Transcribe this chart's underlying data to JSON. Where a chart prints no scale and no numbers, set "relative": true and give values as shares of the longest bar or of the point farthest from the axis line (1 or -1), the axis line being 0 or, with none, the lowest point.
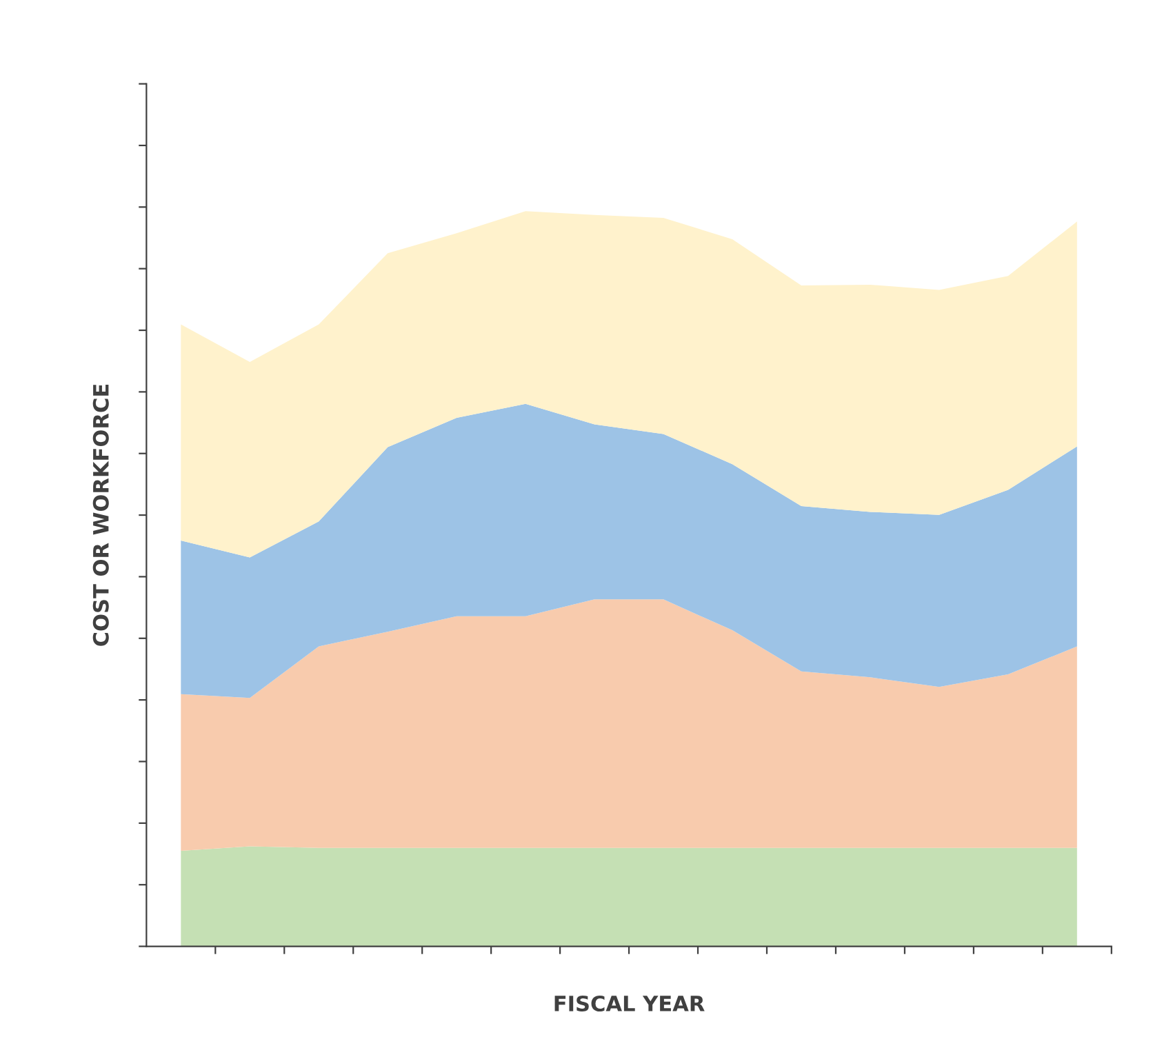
{
  "chart_data": {
    "type": "area",
    "stacked": true,
    "relative": true,
    "xlabel": "FISCAL YEAR",
    "ylabel": "COST OR WORKFORCE",
    "categories": [
      null,
      null,
      null,
      null,
      null,
      null,
      null,
      null,
      null,
      null,
      null,
      null,
      null,
      null
    ],
    "series": [
      {
        "color": "#c5e0b4",
        "values": [
          0.13,
          0.136,
          0.134,
          0.134,
          0.134,
          0.134,
          0.134,
          0.134,
          0.134,
          0.134,
          0.134,
          0.134,
          0.134,
          0.134
        ]
      },
      {
        "color": "#f8cbad",
        "values": [
          0.213,
          0.202,
          0.274,
          0.294,
          0.315,
          0.315,
          0.338,
          0.338,
          0.296,
          0.24,
          0.232,
          0.219,
          0.236,
          0.274
        ]
      },
      {
        "color": "#9dc3e6",
        "values": [
          0.209,
          0.191,
          0.17,
          0.251,
          0.27,
          0.289,
          0.238,
          0.225,
          0.226,
          0.225,
          0.225,
          0.234,
          0.251,
          0.272
        ]
      },
      {
        "color": "#fff2cc",
        "values": [
          0.294,
          0.266,
          0.268,
          0.264,
          0.251,
          0.262,
          0.285,
          0.294,
          0.306,
          0.3,
          0.309,
          0.306,
          0.291,
          0.306
        ]
      }
    ]
  }
}
